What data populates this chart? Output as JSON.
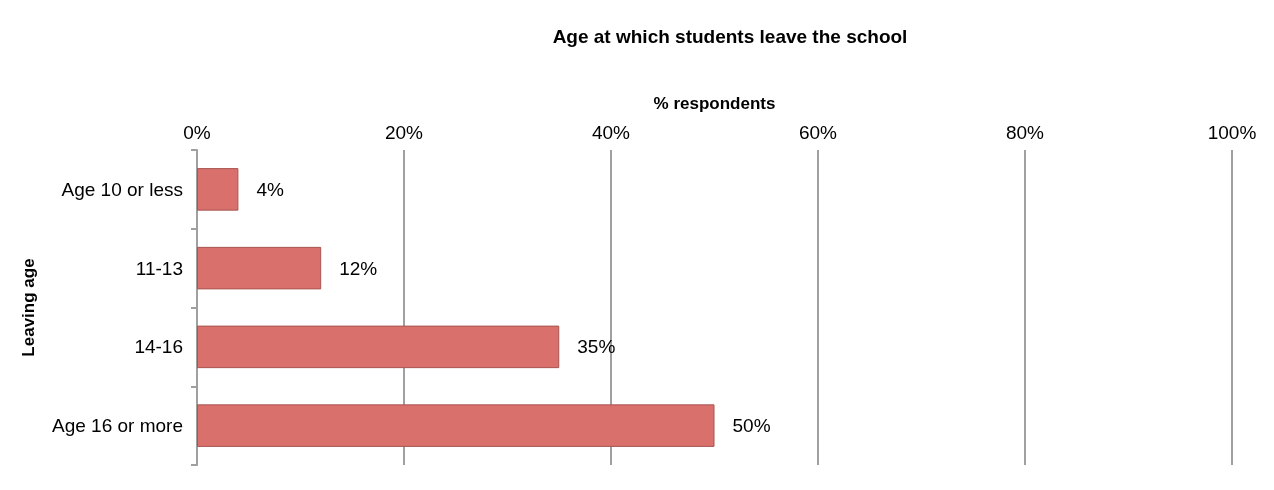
{
  "chart_data": {
    "type": "bar",
    "orientation": "horizontal",
    "title": "Age at which students leave the school",
    "xlabel": "% respondents",
    "ylabel": "Leaving age",
    "categories": [
      "Age 10 or less",
      "11-13",
      "14-16",
      "Age 16 or more"
    ],
    "values": [
      4,
      12,
      35,
      50
    ],
    "color": "#d9706b",
    "value_labels": [
      "4%",
      "12%",
      "35%",
      "50%"
    ],
    "xlim": [
      0,
      100
    ],
    "xticks": [
      {
        "value": 0,
        "label": "0%"
      },
      {
        "value": 20,
        "label": "20%"
      },
      {
        "value": 40,
        "label": "40%"
      },
      {
        "value": 60,
        "label": "60%"
      },
      {
        "value": 80,
        "label": "80%"
      },
      {
        "value": 100,
        "label": "100%"
      }
    ],
    "grid": "x"
  }
}
